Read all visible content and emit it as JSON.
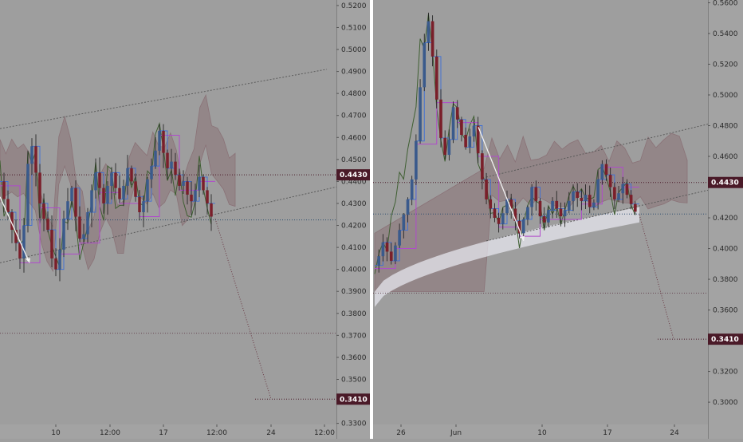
{
  "colors": {
    "background": "#9e9e9e",
    "axis_bg": "#a3a3a3",
    "divider": "#ffffff",
    "candle_up": "#3a5a8c",
    "candle_down": "#7a1f2a",
    "cloud": "#8a7277",
    "chikou": "#3f5f32",
    "kijun": "#b04acb",
    "tenkan": "#3d6fd6",
    "channel": "#5a5a5a",
    "price_tag": "#4a1a28",
    "arrow": "#f2f2f2"
  },
  "chart_data": [
    {
      "type": "candlestick",
      "panel": "left",
      "timeframe_hint": "intraday",
      "x_tick_labels": [
        "10",
        "12:00",
        "17",
        "12:00",
        "24",
        "12:00"
      ],
      "y_tick_labels": [
        "0.5200",
        "0.5100",
        "0.5000",
        "0.4900",
        "0.4800",
        "0.4700",
        "0.4600",
        "0.4500",
        "0.4400",
        "0.4300",
        "0.4200",
        "0.4100",
        "0.4000",
        "0.3900",
        "0.3800",
        "0.3700",
        "0.3600",
        "0.3500",
        "0.3400",
        "0.3300"
      ],
      "ylim": [
        0.3295,
        0.5225
      ],
      "price_tags": [
        {
          "label": "0.4430",
          "value": 0.443
        },
        {
          "label": "0.3410",
          "value": 0.341
        }
      ],
      "horizontal_levels": [
        0.443,
        0.4225,
        0.371
      ],
      "approx_close_path": [
        0.44,
        0.432,
        0.426,
        0.418,
        0.412,
        0.405,
        0.42,
        0.448,
        0.456,
        0.444,
        0.43,
        0.423,
        0.418,
        0.405,
        0.4,
        0.409,
        0.423,
        0.431,
        0.437,
        0.424,
        0.414,
        0.416,
        0.426,
        0.436,
        0.444,
        0.437,
        0.43,
        0.438,
        0.444,
        0.437,
        0.432,
        0.438,
        0.446,
        0.44,
        0.433,
        0.426,
        0.431,
        0.441,
        0.447,
        0.454,
        0.463,
        0.453,
        0.446,
        0.449,
        0.443,
        0.438,
        0.44,
        0.434,
        0.431,
        0.436,
        0.442,
        0.436,
        0.43,
        0.424
      ],
      "projection_target": 0.341
    },
    {
      "type": "candlestick",
      "panel": "right",
      "timeframe_hint": "4h",
      "x_tick_labels": [
        "26",
        "Jun",
        "10",
        "17",
        "24"
      ],
      "y_tick_labels": [
        "0.5600",
        "0.5400",
        "0.5200",
        "0.5000",
        "0.4800",
        "0.4600",
        "0.4430",
        "0.4200",
        "0.4000",
        "0.3800",
        "0.3600",
        "0.3410",
        "0.3200",
        "0.3000"
      ],
      "ylim": [
        0.2855,
        0.5618
      ],
      "price_tags": [
        {
          "label": "0.4430",
          "value": 0.443
        },
        {
          "label": "0.3410",
          "value": 0.341
        }
      ],
      "horizontal_levels": [
        0.443,
        0.4225,
        0.371
      ],
      "approx_close_path": [
        0.389,
        0.395,
        0.404,
        0.398,
        0.392,
        0.402,
        0.412,
        0.422,
        0.432,
        0.445,
        0.47,
        0.505,
        0.534,
        0.548,
        0.525,
        0.497,
        0.472,
        0.461,
        0.471,
        0.492,
        0.484,
        0.474,
        0.466,
        0.473,
        0.48,
        0.462,
        0.445,
        0.432,
        0.426,
        0.42,
        0.416,
        0.423,
        0.432,
        0.426,
        0.418,
        0.41,
        0.419,
        0.427,
        0.44,
        0.431,
        0.421,
        0.417,
        0.425,
        0.431,
        0.426,
        0.421,
        0.425,
        0.431,
        0.437,
        0.433,
        0.431,
        0.435,
        0.427,
        0.43,
        0.445,
        0.455,
        0.448,
        0.44,
        0.432,
        0.436,
        0.442,
        0.435,
        0.429,
        0.424
      ],
      "projection_target": 0.341
    }
  ]
}
